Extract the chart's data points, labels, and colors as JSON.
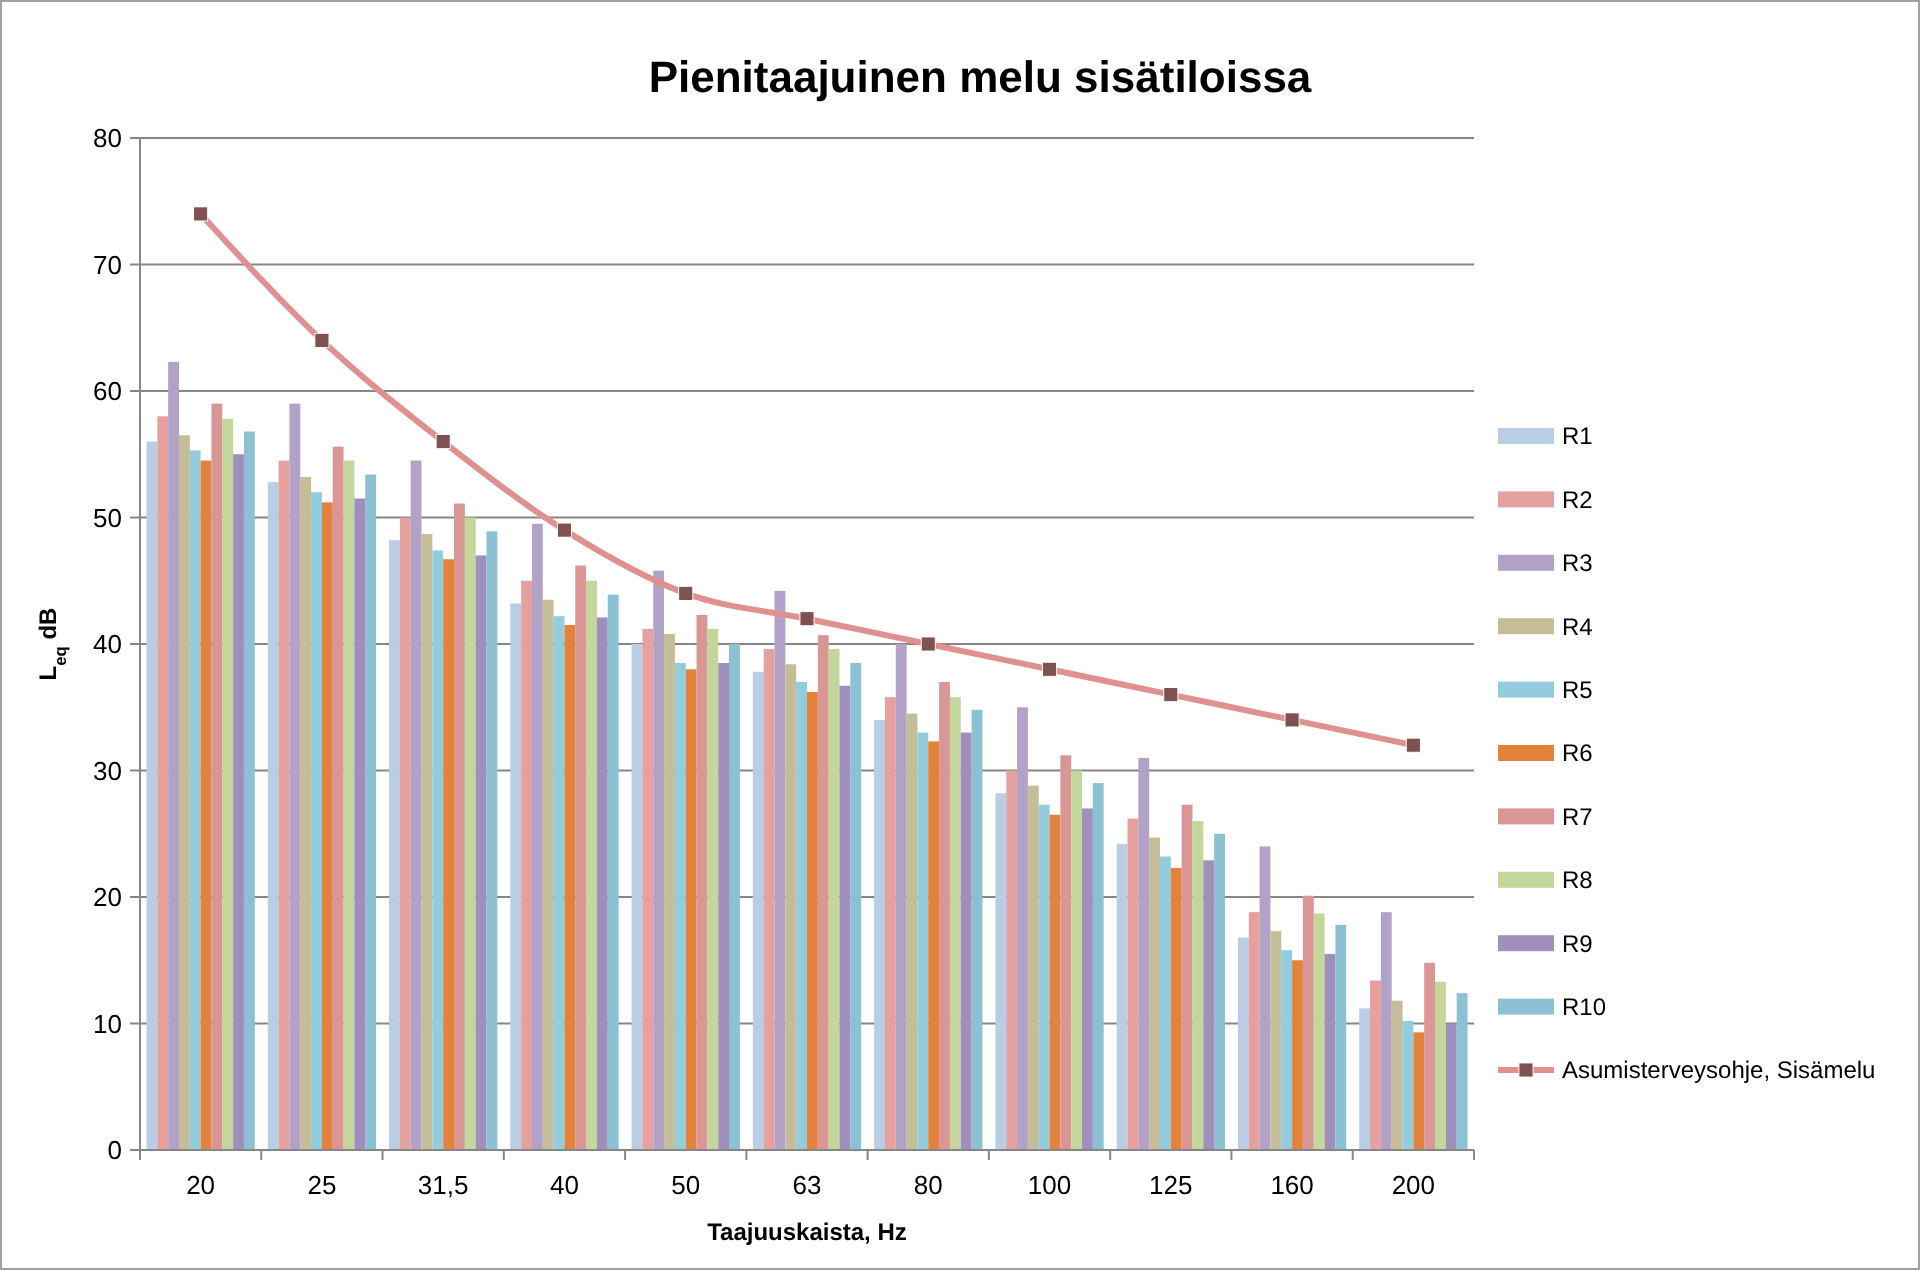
{
  "chart_data": {
    "type": "bar",
    "title": "Pienitaajuinen melu sisätiloissa",
    "xlabel": "Taajuuskaista,  Hz",
    "ylabel": "L$_{eq}$ dB",
    "categories": [
      "20",
      "25",
      "31,5",
      "40",
      "50",
      "63",
      "80",
      "100",
      "125",
      "160",
      "200"
    ],
    "ylim": [
      0,
      80
    ],
    "yticks": [
      0,
      10,
      20,
      30,
      40,
      50,
      60,
      70,
      80
    ],
    "grid": "y",
    "legend": "right",
    "series": [
      {
        "name": "R1",
        "color": "#b9cde5",
        "values": [
          56,
          52.8,
          48.2,
          43.2,
          40,
          37.8,
          34,
          28.2,
          24.2,
          16.8,
          11.2
        ]
      },
      {
        "name": "R2",
        "color": "#e6a09e",
        "values": [
          58,
          54.5,
          50,
          45,
          41.2,
          39.6,
          35.8,
          30,
          26.2,
          18.8,
          13.4
        ]
      },
      {
        "name": "R3",
        "color": "#b3a2c7",
        "values": [
          62.3,
          59,
          54.5,
          49.5,
          45.8,
          44.2,
          40,
          35,
          31,
          24,
          18.8
        ]
      },
      {
        "name": "R4",
        "color": "#c4bd97",
        "values": [
          56.5,
          53.2,
          48.7,
          43.5,
          40.8,
          38.4,
          34.5,
          28.8,
          24.7,
          17.3,
          11.8
        ]
      },
      {
        "name": "R5",
        "color": "#93cddd",
        "values": [
          55.3,
          52,
          47.4,
          42.2,
          38.5,
          37,
          33,
          27.3,
          23.2,
          15.8,
          10.2
        ]
      },
      {
        "name": "R6",
        "color": "#e2823c",
        "values": [
          54.5,
          51.2,
          46.7,
          41.5,
          38,
          36.2,
          32.3,
          26.5,
          22.3,
          15,
          9.3
        ]
      },
      {
        "name": "R7",
        "color": "#d99694",
        "values": [
          59,
          55.6,
          51.1,
          46.2,
          42.3,
          40.7,
          37,
          31.2,
          27.3,
          20.1,
          14.8
        ]
      },
      {
        "name": "R8",
        "color": "#c3d69b",
        "values": [
          57.8,
          54.5,
          50,
          45,
          41.2,
          39.6,
          35.8,
          30,
          26,
          18.7,
          13.3
        ]
      },
      {
        "name": "R9",
        "color": "#a08fbd",
        "values": [
          55,
          51.5,
          47,
          42.1,
          38.5,
          36.7,
          33,
          27,
          22.9,
          15.5,
          10
        ]
      },
      {
        "name": "R10",
        "color": "#8cc0d3",
        "values": [
          56.8,
          53.4,
          48.9,
          43.9,
          40,
          38.5,
          34.8,
          29,
          25,
          17.8,
          12.4
        ]
      },
      {
        "name": "Asumisterveysohje, Sisämelu",
        "type": "line",
        "color": "#e0908e",
        "marker": "square",
        "values": [
          74,
          64,
          56,
          49,
          44,
          42,
          40,
          38,
          36,
          34,
          32
        ]
      }
    ]
  }
}
